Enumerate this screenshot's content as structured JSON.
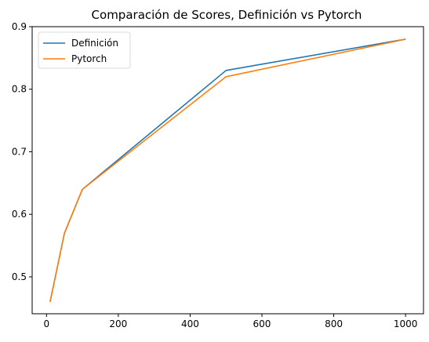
{
  "chart_data": {
    "type": "line",
    "title": "Comparación de Scores, Definición vs Pytorch",
    "xlabel": "",
    "ylabel": "",
    "x": [
      10,
      50,
      100,
      500,
      1000
    ],
    "series": [
      {
        "name": "Definición",
        "values": [
          0.46,
          0.57,
          0.64,
          0.83,
          0.88
        ],
        "color": "#1f77b4"
      },
      {
        "name": "Pytorch",
        "values": [
          0.46,
          0.57,
          0.64,
          0.82,
          0.88
        ],
        "color": "#ff7f0e"
      }
    ],
    "xlim": [
      -40,
      1050
    ],
    "ylim": [
      0.441,
      0.9
    ],
    "xticks": [
      0,
      200,
      400,
      600,
      800,
      1000
    ],
    "yticks": [
      0.5,
      0.6,
      0.7,
      0.8,
      0.9
    ],
    "xtick_labels": [
      "0",
      "200",
      "400",
      "600",
      "800",
      "1000"
    ],
    "ytick_labels": [
      "0.5",
      "0.6",
      "0.7",
      "0.8",
      "0.9"
    ],
    "grid": false,
    "legend": {
      "position": "top-left"
    }
  }
}
